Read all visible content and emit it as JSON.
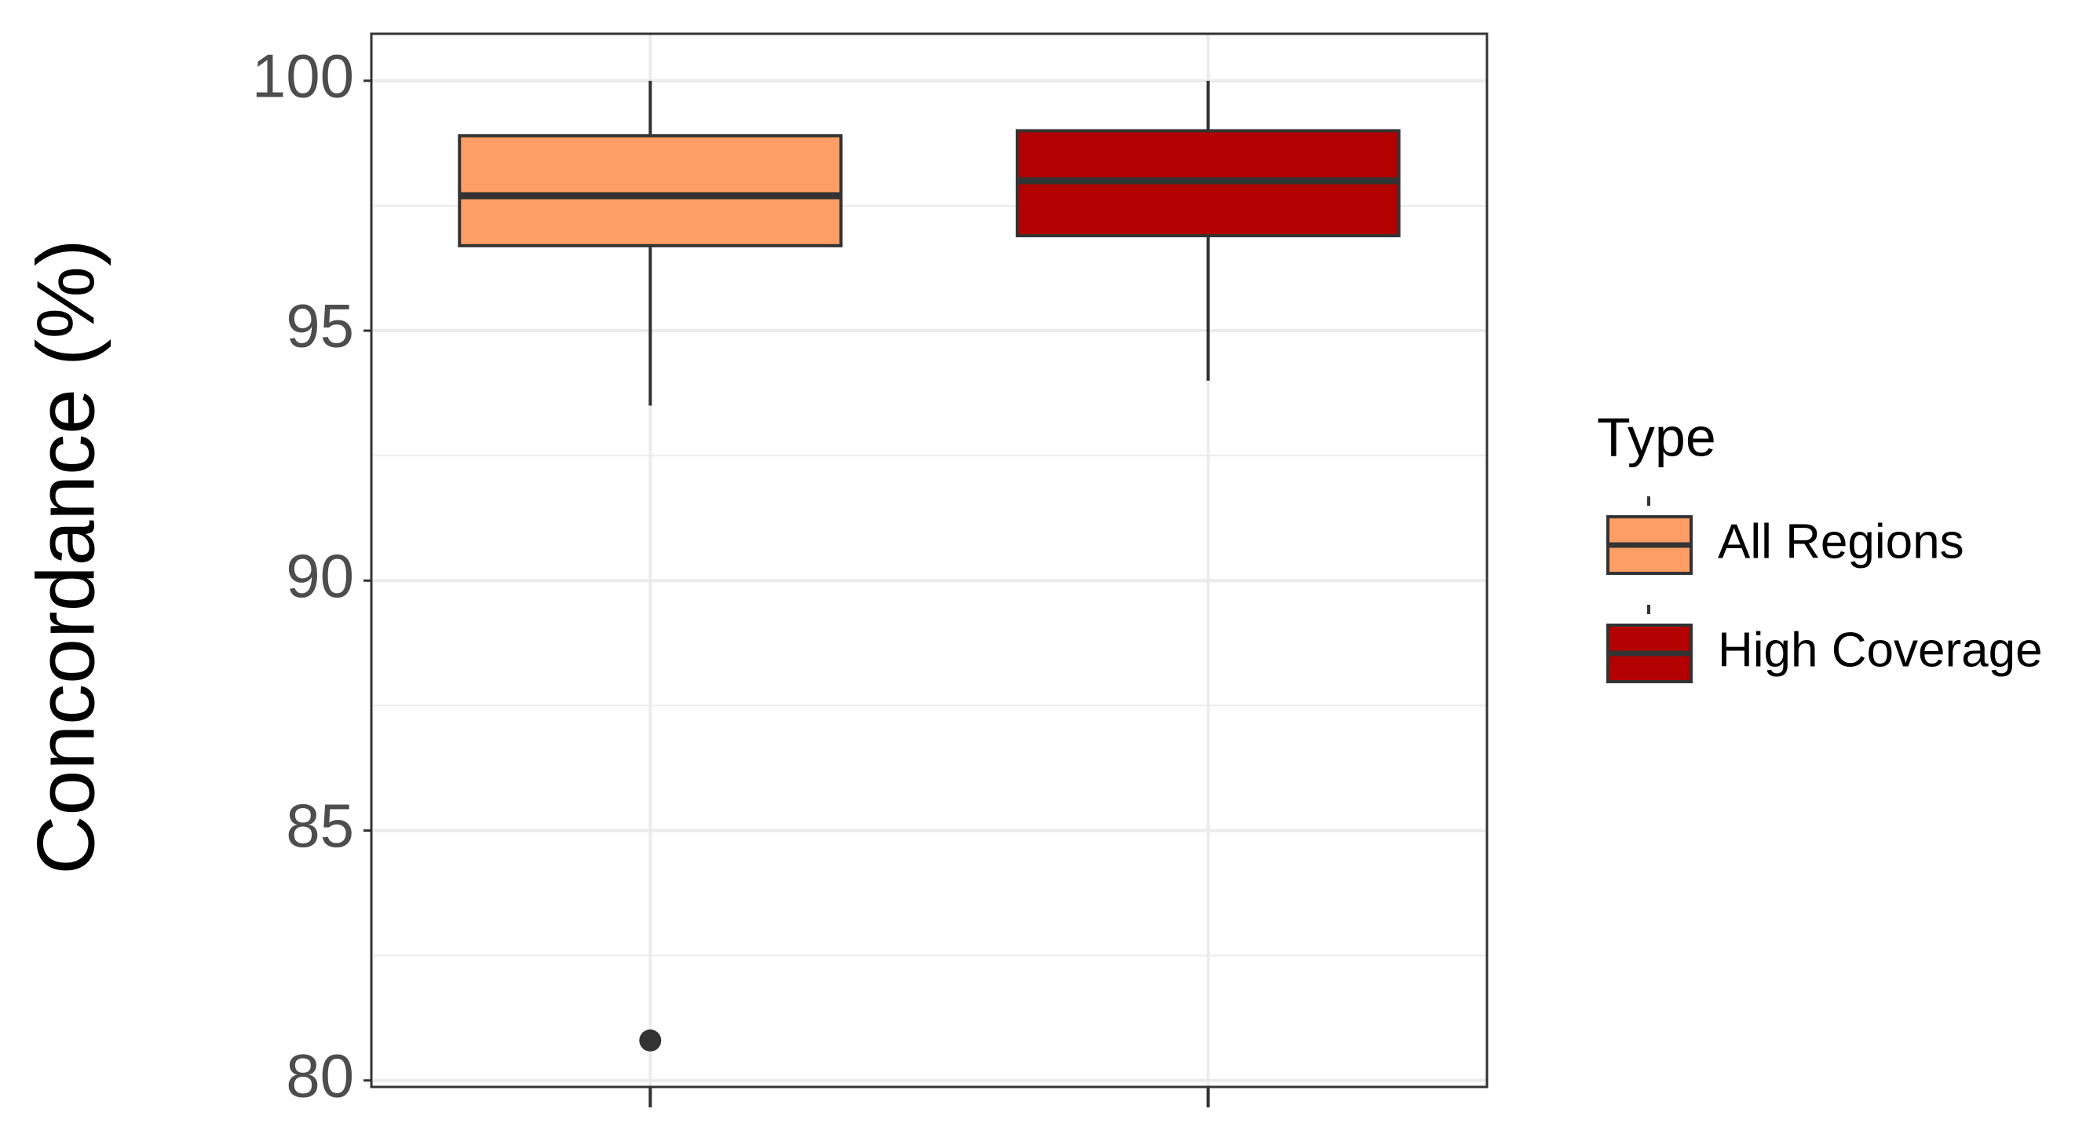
{
  "chart_data": {
    "type": "boxplot",
    "y_label": "Concordance (%)",
    "legend_title": "Type",
    "categories": [
      null,
      null
    ],
    "series": [
      {
        "name": "All Regions",
        "color": "#FC9E65",
        "low": 93.5,
        "q1": 96.7,
        "median": 97.7,
        "q3": 98.9,
        "high": 100,
        "outliers": [
          80.8
        ]
      },
      {
        "name": "High Coverage",
        "color": "#B30000",
        "low": 94.0,
        "q1": 96.9,
        "median": 98.0,
        "q3": 99.0,
        "high": 100,
        "outliers": []
      }
    ],
    "ylim": [
      79.87,
      100.94
    ],
    "yticks": [
      80,
      85,
      90,
      95,
      100
    ],
    "minor_yticks": [
      82.5,
      87.5,
      92.5,
      97.5
    ],
    "grid": true,
    "legend_position": "right"
  }
}
